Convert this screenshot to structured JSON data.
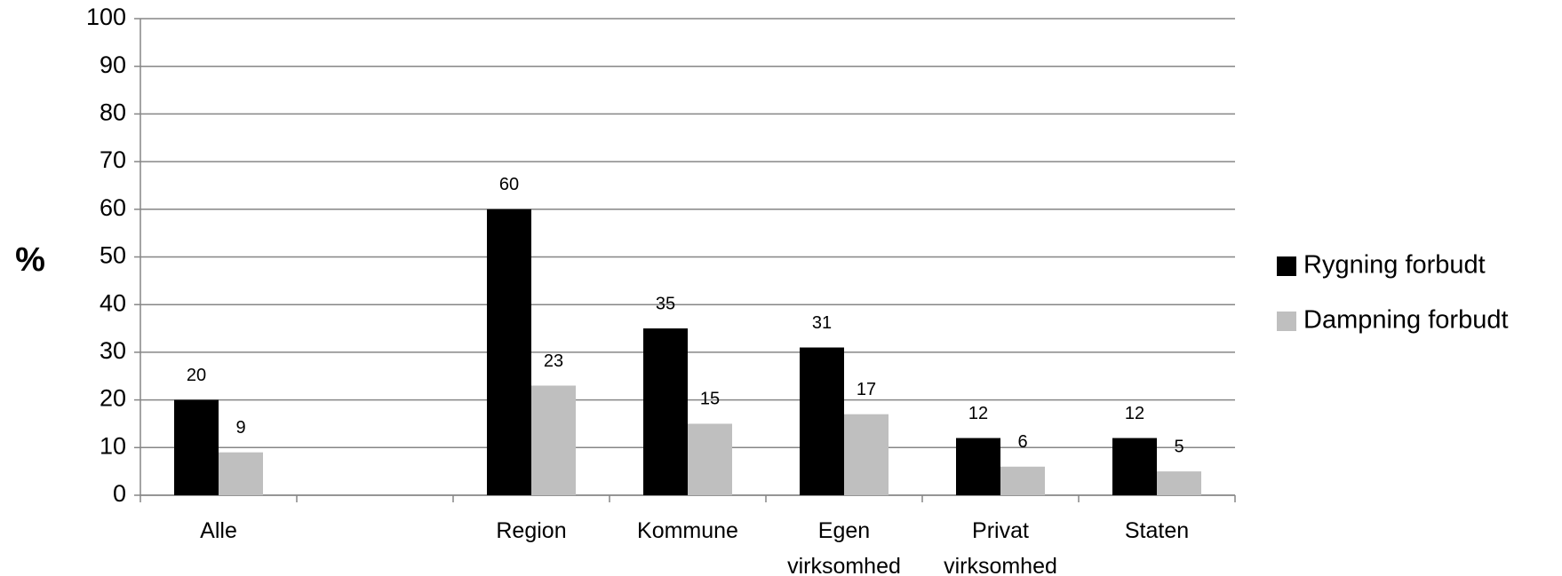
{
  "chart_data": {
    "type": "bar",
    "y_label": "%",
    "categories": [
      "Alle",
      null,
      "Region",
      "Kommune",
      "Egen virksomhed",
      "Privat virksomhed",
      "Staten"
    ],
    "series": [
      {
        "name": "Rygning forbudt",
        "color": "#000000",
        "values": [
          20,
          null,
          60,
          35,
          31,
          12,
          12
        ]
      },
      {
        "name": "Dampning forbudt",
        "color": "#bfbfbf",
        "values": [
          9,
          null,
          23,
          15,
          17,
          6,
          5
        ]
      }
    ],
    "ylim": [
      0,
      100
    ],
    "yticks": [
      0,
      10,
      20,
      30,
      40,
      50,
      60,
      70,
      80,
      90,
      100
    ],
    "grid": true,
    "legend": "right"
  }
}
